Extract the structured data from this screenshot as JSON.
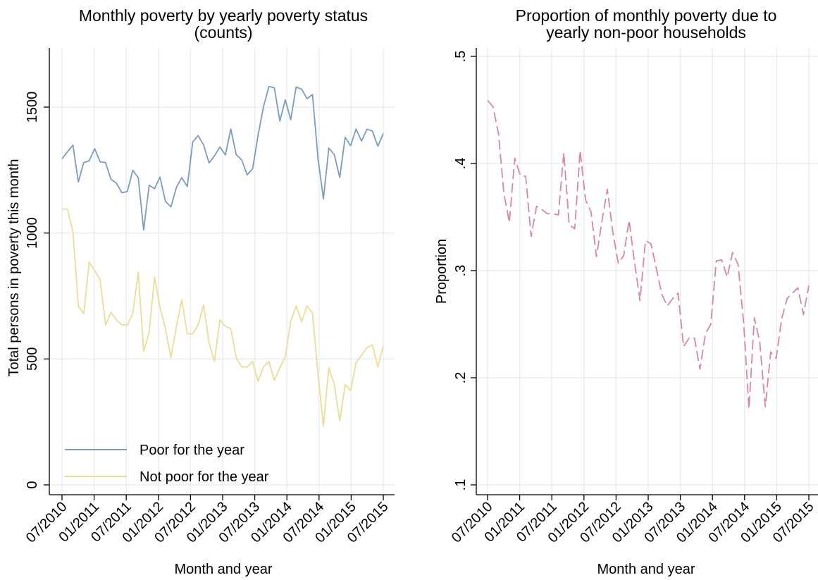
{
  "chart_data": [
    {
      "type": "line",
      "title": "Monthly poverty by yearly poverty status",
      "subtitle": "(counts)",
      "xlabel": "Month and year",
      "ylabel": "Total persons in poverty this month",
      "x_tick_labels": [
        "07/2010",
        "01/2011",
        "07/2011",
        "01/2012",
        "07/2012",
        "01/2013",
        "07/2013",
        "01/2014",
        "07/2014",
        "01/2015",
        "07/2015"
      ],
      "y_tick_labels": [
        "0",
        "500",
        "1000",
        "1500"
      ],
      "y_ticks": [
        0,
        500,
        1000,
        1500
      ],
      "ylim": [
        0,
        1500
      ],
      "grid": true,
      "legend": "bottom-left",
      "series": [
        {
          "name": "Poor for the year",
          "color": "#7B9BC2",
          "values": [
            1295,
            1322,
            1349,
            1203,
            1280,
            1287,
            1335,
            1283,
            1280,
            1213,
            1198,
            1160,
            1165,
            1249,
            1220,
            1012,
            1190,
            1176,
            1222,
            1126,
            1104,
            1181,
            1220,
            1185,
            1361,
            1387,
            1350,
            1278,
            1306,
            1342,
            1310,
            1413,
            1311,
            1290,
            1231,
            1255,
            1387,
            1502,
            1582,
            1577,
            1445,
            1529,
            1450,
            1580,
            1571,
            1534,
            1550,
            1298,
            1135,
            1337,
            1312,
            1221,
            1380,
            1347,
            1413,
            1365,
            1412,
            1405,
            1345,
            1395
          ]
        },
        {
          "name": "Not poor for the year",
          "color": "#EDDC96",
          "values": [
            1095,
            1095,
            1005,
            710,
            680,
            885,
            850,
            815,
            635,
            685,
            655,
            635,
            635,
            680,
            845,
            530,
            607,
            825,
            705,
            620,
            505,
            628,
            735,
            600,
            600,
            635,
            715,
            565,
            490,
            655,
            630,
            620,
            505,
            468,
            468,
            490,
            412,
            468,
            490,
            415,
            465,
            510,
            648,
            710,
            648,
            710,
            683,
            440,
            235,
            465,
            400,
            255,
            398,
            375,
            485,
            515,
            545,
            556,
            468,
            552
          ]
        }
      ]
    },
    {
      "type": "line",
      "title": "Proportion of monthly poverty due to",
      "subtitle": "yearly non-poor households",
      "xlabel": "Month and year",
      "ylabel": "Proportion",
      "x_tick_labels": [
        "07/2010",
        "01/2011",
        "07/2011",
        "01/2012",
        "07/2012",
        "01/2013",
        "07/2013",
        "01/2014",
        "07/2014",
        "01/2015",
        "07/2015"
      ],
      "y_tick_labels": [
        ".1",
        ".2",
        ".3",
        ".4",
        ".5"
      ],
      "y_ticks": [
        0.1,
        0.2,
        0.3,
        0.4,
        0.5
      ],
      "ylim": [
        0.1,
        0.5
      ],
      "grid": true,
      "series": [
        {
          "color": "#D9889B",
          "line_style": "dashed",
          "values": [
            0.459,
            0.453,
            0.428,
            0.372,
            0.345,
            0.405,
            0.389,
            0.388,
            0.332,
            0.36,
            0.357,
            0.353,
            0.353,
            0.352,
            0.41,
            0.343,
            0.339,
            0.412,
            0.366,
            0.355,
            0.313,
            0.346,
            0.376,
            0.336,
            0.307,
            0.314,
            0.347,
            0.307,
            0.272,
            0.328,
            0.325,
            0.302,
            0.278,
            0.267,
            0.274,
            0.279,
            0.229,
            0.237,
            0.237,
            0.208,
            0.241,
            0.25,
            0.309,
            0.31,
            0.294,
            0.317,
            0.306,
            0.253,
            0.171,
            0.256,
            0.233,
            0.173,
            0.224,
            0.218,
            0.255,
            0.274,
            0.279,
            0.284,
            0.259,
            0.286
          ]
        }
      ]
    }
  ]
}
